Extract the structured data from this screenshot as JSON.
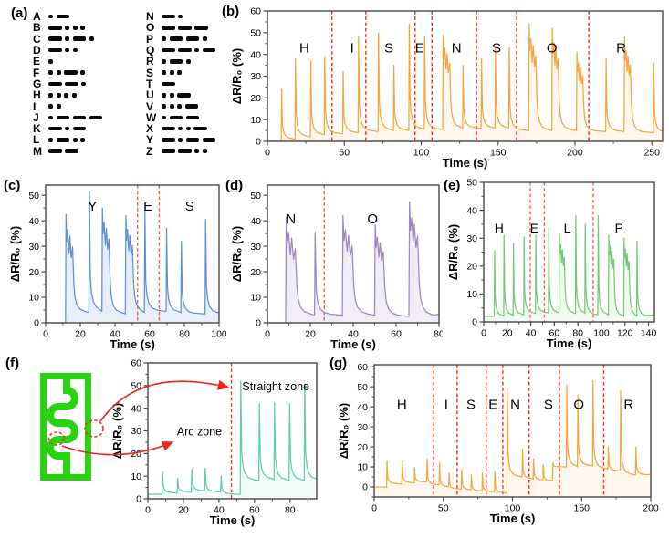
{
  "figure": {
    "panel_labels": {
      "a": "(a)",
      "b": "(b)",
      "c": "(c)",
      "d": "(d)",
      "e": "(e)",
      "f": "(f)",
      "g": "(g)"
    }
  },
  "morse": {
    "left": [
      [
        "A",
        ".-"
      ],
      [
        "B",
        "-..."
      ],
      [
        "C",
        "-.-."
      ],
      [
        "D",
        "-.."
      ],
      [
        "E",
        "."
      ],
      [
        "F",
        "..-."
      ],
      [
        "G",
        "--."
      ],
      [
        "H",
        "...."
      ],
      [
        "I",
        ".."
      ],
      [
        "J",
        ".---"
      ],
      [
        "K",
        "-.-"
      ],
      [
        "L",
        ".-.."
      ],
      [
        "M",
        "--"
      ]
    ],
    "right": [
      [
        "N",
        "-."
      ],
      [
        "O",
        "---"
      ],
      [
        "P",
        ".--."
      ],
      [
        "Q",
        "--.-"
      ],
      [
        "R",
        ".-."
      ],
      [
        "S",
        "..."
      ],
      [
        "T",
        "-"
      ],
      [
        "U",
        "..-"
      ],
      [
        "V",
        "...-"
      ],
      [
        "W",
        ".--"
      ],
      [
        "X",
        "-..-"
      ],
      [
        "Y",
        "-.--"
      ],
      [
        "Z",
        "--.."
      ]
    ]
  },
  "chart_data": [
    {
      "id": "b",
      "type": "line",
      "word": "HISENSOR",
      "color": "#faa43b",
      "fill_opacity": 0.09,
      "sep_color": "#f3291c",
      "xlabel": "Time (s)",
      "ylabel": "ΔR/R₀ (%)",
      "xlim": [
        0,
        257
      ],
      "ylim": [
        0,
        60
      ],
      "xticks": [
        0,
        50,
        100,
        150,
        200,
        250
      ],
      "yticks": [
        0,
        10,
        20,
        30,
        40,
        50,
        60
      ],
      "xminor": 25,
      "yminor": 5,
      "separators": [
        42,
        64,
        96,
        107,
        136,
        162,
        209
      ],
      "letters": [
        [
          "H",
          24,
          41
        ],
        [
          "I",
          55,
          41
        ],
        [
          "S",
          79,
          41
        ],
        [
          "E",
          99,
          41
        ],
        [
          "N",
          123,
          41
        ],
        [
          "S",
          149,
          41
        ],
        [
          "O",
          185,
          41
        ],
        [
          "R",
          230,
          41
        ]
      ],
      "pulses": [
        [
          9,
          24,
          0.8,
          0
        ],
        [
          18,
          38,
          0.8,
          1
        ],
        [
          28,
          37,
          0.8,
          2
        ],
        [
          37,
          39,
          0.8,
          3
        ],
        [
          49,
          32,
          0.8,
          3.5
        ],
        [
          59,
          48,
          0.8,
          4
        ],
        [
          72,
          50,
          0.8,
          4.5
        ],
        [
          82,
          35,
          0.8,
          5
        ],
        [
          92,
          54,
          0.8,
          5
        ],
        [
          102,
          48,
          0.8,
          5.5
        ],
        [
          114,
          49,
          4.5,
          5.5
        ],
        [
          127,
          35,
          0.8,
          6
        ],
        [
          139,
          38,
          0.8,
          6
        ],
        [
          148,
          44,
          0.8,
          6
        ],
        [
          157,
          43,
          0.8,
          6
        ],
        [
          170,
          54,
          4.5,
          5
        ],
        [
          185,
          52,
          4,
          5
        ],
        [
          201,
          41,
          4,
          5
        ],
        [
          220,
          38,
          0.8,
          4.5
        ],
        [
          232,
          48,
          4,
          4.5
        ],
        [
          251,
          36,
          0.8,
          4
        ]
      ]
    },
    {
      "id": "c",
      "type": "line",
      "word": "YES",
      "color": "#5f8fd7",
      "fill_opacity": 0.14,
      "sep_color": "#f4604c",
      "xlabel": "Time (s)",
      "ylabel": "ΔR/R₀ (%)",
      "xlim": [
        0,
        100
      ],
      "ylim": [
        0,
        54
      ],
      "xticks": [
        0,
        20,
        40,
        60,
        80,
        100
      ],
      "yticks": [
        0,
        10,
        20,
        30,
        40,
        50
      ],
      "xminor": 10,
      "yminor": 5,
      "separators": [
        53,
        65.5
      ],
      "letters": [
        [
          "Y",
          27,
          44
        ],
        [
          "E",
          59,
          44
        ],
        [
          "S",
          83,
          44
        ]
      ],
      "pulses": [
        [
          11.5,
          42.5,
          4,
          0
        ],
        [
          25,
          51.5,
          0.8,
          4
        ],
        [
          32.5,
          45,
          4,
          4.5
        ],
        [
          46,
          42,
          4,
          3.5
        ],
        [
          57,
          44,
          0.8,
          4
        ],
        [
          69.5,
          37,
          0.8,
          4.5
        ],
        [
          78,
          32,
          0.8,
          4
        ],
        [
          92,
          40.5,
          0.8,
          3.5
        ]
      ]
    },
    {
      "id": "d",
      "type": "line",
      "word": "NO",
      "color": "#9d87c2",
      "fill_opacity": 0.15,
      "sep_color": "#f4604c",
      "xlabel": "Time (s)",
      "ylabel": "ΔR/R₀ (%)",
      "xlim": [
        0,
        80
      ],
      "ylim": [
        0,
        54
      ],
      "xticks": [
        0,
        20,
        40,
        60,
        80
      ],
      "yticks": [
        0,
        10,
        20,
        30,
        40,
        50
      ],
      "xminor": 10,
      "yminor": 5,
      "separators": [
        26.5
      ],
      "letters": [
        [
          "N",
          11,
          39
        ],
        [
          "O",
          49,
          39
        ]
      ],
      "pulses": [
        [
          8.5,
          41.5,
          4.5,
          0
        ],
        [
          22,
          35.5,
          0.8,
          3
        ],
        [
          35,
          42,
          4.5,
          3
        ],
        [
          50,
          38.5,
          4,
          3
        ],
        [
          66,
          47.5,
          4,
          2.5
        ]
      ]
    },
    {
      "id": "e",
      "type": "line",
      "word": "HELP",
      "color": "#74c974",
      "fill_opacity": 0.1,
      "sep_color": "#f4604c",
      "xlabel": "Time (s)",
      "ylabel": "ΔR/R₀ (%)",
      "xlim": [
        0,
        145
      ],
      "ylim": [
        0,
        50
      ],
      "xticks": [
        0,
        20,
        40,
        60,
        80,
        100,
        120,
        140
      ],
      "yticks": [
        0,
        10,
        20,
        30,
        40,
        50
      ],
      "xminor": 10,
      "yminor": 5,
      "separators": [
        39.5,
        51.5,
        93
      ],
      "letters": [
        [
          "H",
          13,
          32
        ],
        [
          "E",
          43,
          32
        ],
        [
          "L",
          71,
          32
        ],
        [
          "P",
          115,
          32
        ]
      ],
      "pulses": [
        [
          9,
          25.5,
          0.8,
          2
        ],
        [
          17,
          31,
          0.8,
          2
        ],
        [
          25,
          28,
          0.8,
          2.2
        ],
        [
          34,
          30.5,
          0.8,
          2.5
        ],
        [
          44,
          31,
          0.8,
          3
        ],
        [
          55,
          34,
          0.8,
          3.2
        ],
        [
          64,
          31.5,
          4.5,
          3.2
        ],
        [
          78,
          38,
          0.8,
          3
        ],
        [
          86,
          35,
          0.8,
          3
        ],
        [
          97,
          38,
          0.8,
          2.5
        ],
        [
          106,
          31,
          4.5,
          2.5
        ],
        [
          119,
          30,
          4.5,
          2
        ],
        [
          130,
          29,
          0.8,
          2
        ]
      ]
    },
    {
      "id": "f",
      "type": "line",
      "word": "",
      "color": "#5ecfa6",
      "fill_opacity": 0.08,
      "sep_color": "#f3301f",
      "xlabel": "Time (s)",
      "ylabel": "ΔR/R₀ (%)",
      "xlim": [
        0,
        95
      ],
      "ylim": [
        0,
        60
      ],
      "xticks": [
        0,
        20,
        40,
        60,
        80
      ],
      "yticks": [
        0,
        10,
        20,
        30,
        40,
        50,
        60
      ],
      "xminor": 10,
      "yminor": 5,
      "separators": [
        47
      ],
      "letters": [
        [
          "Arc zone",
          29,
          28
        ],
        [
          "Straight zone",
          72,
          48
        ]
      ],
      "pulses": [
        [
          8,
          12,
          0.8,
          2
        ],
        [
          16.5,
          9,
          0.8,
          2.5
        ],
        [
          24.5,
          13,
          0.8,
          3
        ],
        [
          32,
          13.5,
          0.8,
          3.5
        ],
        [
          41,
          10,
          0.8,
          3
        ],
        [
          52,
          52,
          0.8,
          2
        ],
        [
          62.5,
          42,
          0.8,
          8
        ],
        [
          71,
          42.5,
          0.8,
          8.5
        ],
        [
          79.5,
          42,
          0.8,
          8
        ],
        [
          88,
          51,
          0.8,
          8
        ]
      ]
    },
    {
      "id": "g",
      "type": "line",
      "word": "HISENSOR",
      "color": "#faa43b",
      "fill_opacity": 0.09,
      "sep_color": "#f3291c",
      "xlabel": "Time (s)",
      "ylabel": "ΔR/R₀ (%)",
      "xlim": [
        0,
        200
      ],
      "ylim": [
        -5,
        61
      ],
      "xticks": [
        0,
        50,
        100,
        150,
        200
      ],
      "yticks": [
        0,
        10,
        20,
        30,
        40,
        50,
        60
      ],
      "xminor": 25,
      "yminor": 5,
      "separators": [
        43,
        60,
        81,
        93,
        112,
        134,
        166
      ],
      "letters": [
        [
          "H",
          20,
          39
        ],
        [
          "I",
          52,
          39
        ],
        [
          "S",
          70,
          39
        ],
        [
          "E",
          86,
          39
        ],
        [
          "N",
          102,
          39
        ],
        [
          "S",
          126,
          39
        ],
        [
          "O",
          148,
          39
        ],
        [
          "R",
          184,
          39
        ]
      ],
      "pulses": [
        [
          9,
          13,
          0.8,
          0
        ],
        [
          20,
          13,
          0.8,
          1.5
        ],
        [
          29,
          9.5,
          0.8,
          2
        ],
        [
          38,
          14,
          0.8,
          2.5
        ],
        [
          47,
          12.3,
          0.8,
          1
        ],
        [
          54,
          7,
          0.8,
          0
        ],
        [
          63,
          8.8,
          0.8,
          -1
        ],
        [
          70,
          6,
          0.8,
          -1.5
        ],
        [
          78,
          7,
          0.8,
          -2
        ],
        [
          87,
          7.5,
          0.8,
          -2.5
        ],
        [
          96,
          49,
          0.8,
          -3
        ],
        [
          107,
          19,
          0.8,
          5
        ],
        [
          115,
          14,
          0.8,
          4
        ],
        [
          122,
          11,
          0.8,
          3.5
        ],
        [
          129,
          12,
          0.8,
          3
        ],
        [
          139,
          51,
          0.8,
          10
        ],
        [
          147,
          46,
          0.8,
          10
        ],
        [
          158,
          53,
          0.8,
          10.5
        ],
        [
          169,
          20,
          0.8,
          9
        ],
        [
          178,
          48,
          0.8,
          8
        ],
        [
          189,
          20,
          0.8,
          6
        ]
      ]
    }
  ],
  "sensor": {
    "body_color": "#26d50d",
    "annotation_color": "#e8281b",
    "zone_labels": [
      "Arc zone",
      "Straight zone"
    ]
  }
}
